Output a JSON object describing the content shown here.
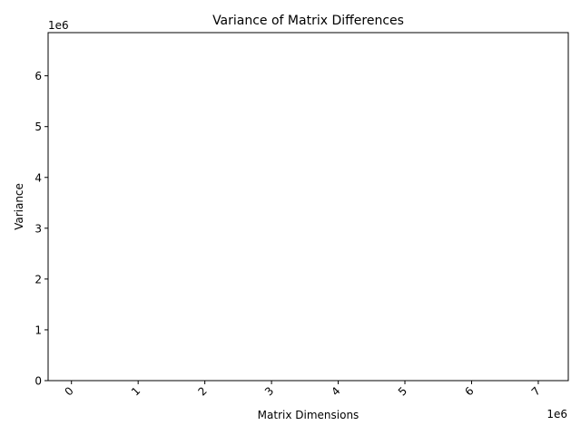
{
  "chart_data": {
    "type": "bar",
    "title": "Variance of Matrix Differences",
    "xlabel": "Matrix Dimensions",
    "ylabel": "Variance",
    "x_offset_text": "1e6",
    "y_offset_text": "1e6",
    "xlim": [
      -0.35,
      7.45
    ],
    "ylim": [
      0,
      6.85
    ],
    "x_ticks": [
      0,
      1,
      2,
      3,
      4,
      5,
      6,
      7
    ],
    "x_tick_labels": [
      "0",
      "1",
      "2",
      "3",
      "4",
      "5",
      "6",
      "7"
    ],
    "y_ticks": [
      0,
      1,
      2,
      3,
      4,
      5,
      6
    ],
    "y_tick_labels": [
      "0",
      "1",
      "2",
      "3",
      "4",
      "5",
      "6"
    ],
    "x_tick_rotation_deg": 45,
    "grid": false,
    "legend": "none",
    "values": []
  }
}
